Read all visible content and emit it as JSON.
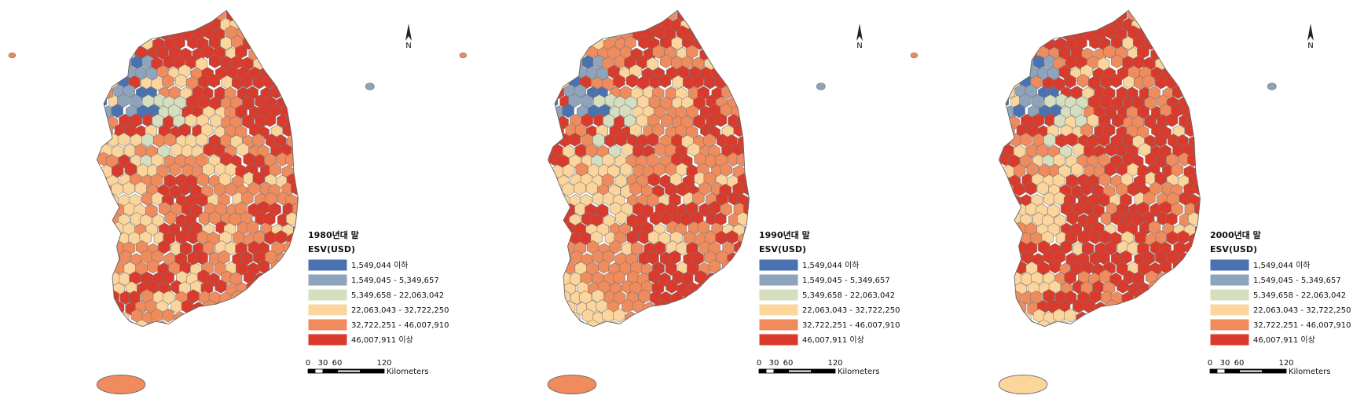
{
  "legend_colors": [
    "#4a72b0",
    "#8ea3bc",
    "#d5dfbf",
    "#fbd59c",
    "#ef8b5c",
    "#d93a2b"
  ],
  "maps": [
    {
      "title": "1980년대 말",
      "legend_title": "ESV(USD)",
      "legend": [
        "1,549,044 이하",
        "1,549,045 - 5,349,657",
        "5,349,658 - 22,063,042",
        "22,063,043 - 32,722,250",
        "32,722,251 - 46,007,910",
        "46,007,911 이상"
      ],
      "scale_labels": [
        "0",
        "30",
        "60",
        "120"
      ],
      "scale_unit": "Kilometers",
      "north": "N"
    },
    {
      "title": "1990년대 말",
      "legend_title": "ESV(USD)",
      "legend": [
        "1,549,044 이하",
        "1,549,045 - 5,349,657",
        "5,349,658 - 22,063,042",
        "22,063,043 - 32,722,250",
        "32,722,251 - 46,007,910",
        "46,007,911 이상"
      ],
      "scale_labels": [
        "0",
        "30",
        "60",
        "120"
      ],
      "scale_unit": "Kilometers",
      "north": "N"
    },
    {
      "title": "2000년대 말",
      "legend_title": "ESV(USD)",
      "legend": [
        "1,549,044 이하",
        "1,549,045 - 5,349,657",
        "5,349,658 - 22,063,042",
        "22,063,043 - 32,722,250",
        "32,722,251 - 46,007,910",
        "46,007,911 이상"
      ],
      "scale_labels": [
        "0",
        "30",
        "60",
        "120"
      ],
      "scale_unit": "Kilometers",
      "north": "N"
    }
  ]
}
